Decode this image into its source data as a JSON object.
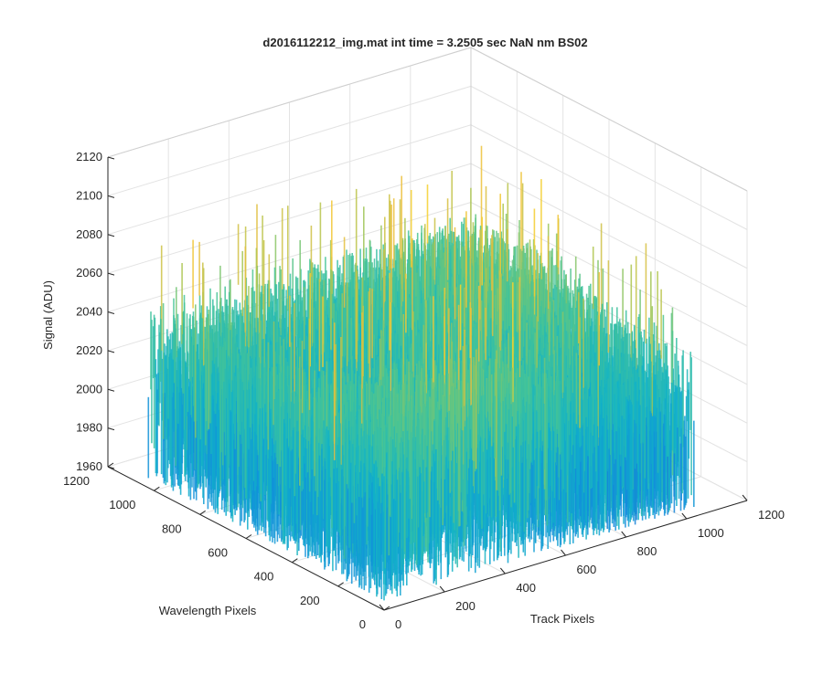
{
  "chart_data": {
    "type": "surface",
    "title": "d2016112212_img.mat int time = 3.2505 sec  NaN nm BS02",
    "xlabel": "Track Pixels",
    "ylabel": "Wavelength Pixels",
    "zlabel": "Signal (ADU)",
    "xlim": [
      0,
      1200
    ],
    "ylim": [
      0,
      1200
    ],
    "zlim": [
      1960,
      2120
    ],
    "xticks": [
      "0",
      "200",
      "400",
      "600",
      "800",
      "1000",
      "1200"
    ],
    "yticks": [
      "0",
      "200",
      "400",
      "600",
      "800",
      "1000",
      "1200"
    ],
    "zticks": [
      "1960",
      "1980",
      "2000",
      "2020",
      "2040",
      "2060",
      "2080",
      "2100",
      "2120"
    ],
    "grid": true,
    "surface": {
      "x_range": [
        0,
        1024
      ],
      "y_range": [
        0,
        1024
      ],
      "baseline_mean": 2030,
      "noise_range": [
        1965,
        2110
      ],
      "colormap": "parula"
    }
  }
}
